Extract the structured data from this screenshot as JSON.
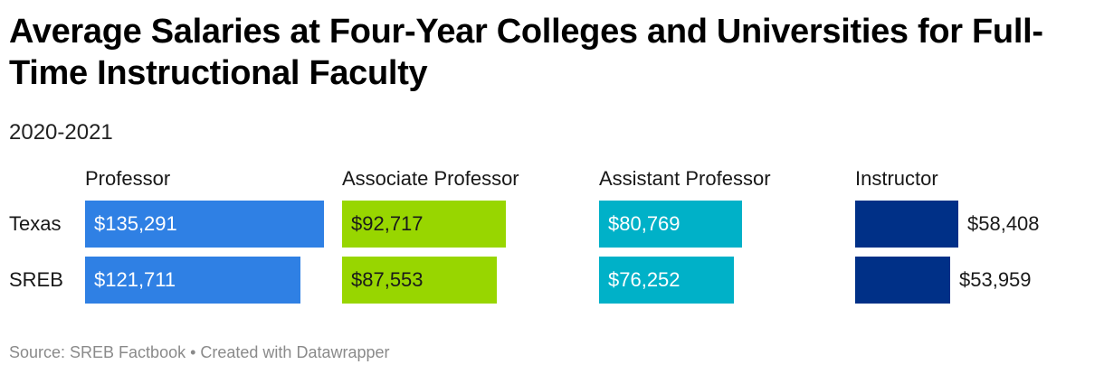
{
  "title": "Average Salaries at Four-Year Colleges and Universities for Full-Time Instructional Faculty",
  "subtitle": "2020-2021",
  "footer": "Source: SREB Factbook • Created with Datawrapper",
  "chart_data": {
    "type": "bar",
    "title": "Average Salaries at Four-Year Colleges and Universities for Full-Time Instructional Faculty",
    "subtitle": "2020-2021",
    "rows": [
      "Texas",
      "SREB"
    ],
    "panels": [
      {
        "name": "Professor",
        "color": "#2f80e4",
        "values": [
          135291,
          121711
        ],
        "labels": [
          "$135,291",
          "$121,711"
        ]
      },
      {
        "name": "Associate Professor",
        "color": "#98d600",
        "values": [
          92717,
          87553
        ],
        "labels": [
          "$92,717",
          "$87,553"
        ]
      },
      {
        "name": "Assistant Professor",
        "color": "#00b1c8",
        "values": [
          80769,
          76252
        ],
        "labels": [
          "$80,769",
          "$76,252"
        ]
      },
      {
        "name": "Instructor",
        "color": "#003087",
        "values": [
          58408,
          53959
        ],
        "labels": [
          "$58,408",
          "$53,959"
        ]
      }
    ],
    "xlim": [
      0,
      135291
    ],
    "source": "SREB Factbook"
  }
}
